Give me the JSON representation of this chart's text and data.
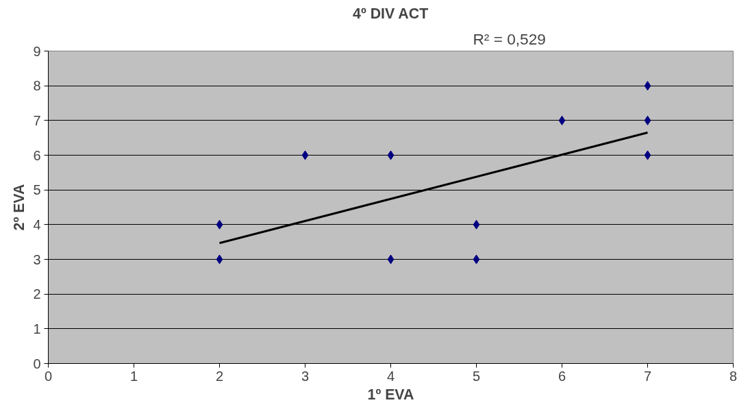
{
  "chart_data": {
    "type": "scatter",
    "title": "4º DIV ACT",
    "xlabel": "1º EVA",
    "ylabel": "2º EVA",
    "annotations": [
      "R² = 0,529"
    ],
    "x": [
      2,
      2,
      3,
      4,
      4,
      5,
      5,
      6,
      7,
      7,
      7
    ],
    "series": [
      {
        "color": "#000080",
        "values": [
          4,
          3,
          6,
          6,
          3,
          4,
          3,
          7,
          8,
          7,
          6
        ],
        "marker": "diamond"
      },
      {
        "type": "line",
        "color": "#000000",
        "x": [
          2,
          7
        ],
        "values": [
          3.47,
          6.65
        ],
        "line_style": "solid",
        "marker": "none"
      }
    ],
    "xlim": [
      0,
      8
    ],
    "xticks": [
      0,
      1,
      2,
      3,
      4,
      5,
      6,
      7,
      8
    ],
    "ylim": [
      0,
      9
    ],
    "yticks": [
      0,
      1,
      2,
      3,
      4,
      5,
      6,
      7,
      8,
      9
    ],
    "grid": "y"
  }
}
